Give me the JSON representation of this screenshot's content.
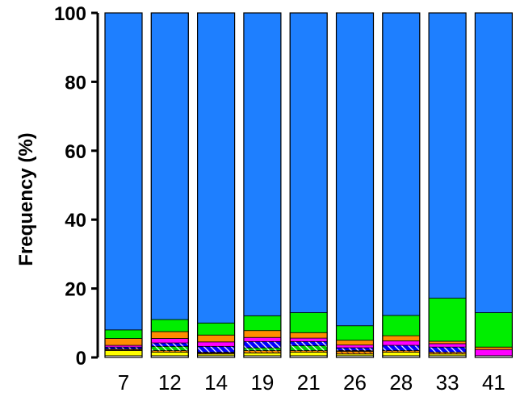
{
  "chart_data": {
    "type": "bar",
    "stacked": true,
    "ylabel": "Frequency (%)",
    "xlabel": "",
    "ylim": [
      0,
      100
    ],
    "yticks": [
      "0",
      "20",
      "40",
      "60",
      "80",
      "100"
    ],
    "categories": [
      "7",
      "12",
      "14",
      "19",
      "21",
      "26",
      "28",
      "33",
      "41"
    ],
    "grid": false,
    "legend": "none",
    "series": [
      {
        "fill": "#ffffff",
        "pattern": "none",
        "values": [
          0.5,
          0.5,
          0.5,
          0.5,
          0.5,
          0.5,
          0.5,
          0.5,
          0.5
        ]
      },
      {
        "fill": "#ffff00",
        "pattern": "none",
        "values": [
          1.5,
          1.0,
          0.5,
          0.8,
          1.0,
          0.5,
          1.0,
          0.5,
          0.0
        ]
      },
      {
        "fill": "#ff8c00",
        "pattern": "dark-hatch",
        "values": [
          0.3,
          0.5,
          0.3,
          0.7,
          0.5,
          0.8,
          0.5,
          0.5,
          0.0
        ]
      },
      {
        "fill": "#ff00ff",
        "pattern": "none",
        "values": [
          0.2,
          0.0,
          0.2,
          0.0,
          0.0,
          0.2,
          0.0,
          0.0,
          1.8
        ]
      },
      {
        "fill": "#00cc00",
        "pattern": "white-hatch",
        "values": [
          0.0,
          1.2,
          0.0,
          0.8,
          1.4,
          0.0,
          0.0,
          0.0,
          0.0
        ]
      },
      {
        "fill": "#0000ff",
        "pattern": "white-hatch",
        "values": [
          0.5,
          1.0,
          1.7,
          1.8,
          1.2,
          0.8,
          1.5,
          1.5,
          0.0
        ]
      },
      {
        "fill": "#ff00ff",
        "pattern": "none",
        "values": [
          0.5,
          1.3,
          1.3,
          1.2,
          1.0,
          0.8,
          1.3,
          1.0,
          0.0
        ]
      },
      {
        "fill": "#ff8c00",
        "pattern": "none",
        "values": [
          2.0,
          2.0,
          2.0,
          2.0,
          1.6,
          1.4,
          1.5,
          0.7,
          0.7
        ]
      },
      {
        "fill": "#00ee00",
        "pattern": "none",
        "values": [
          2.5,
          3.5,
          3.5,
          4.3,
          5.8,
          4.2,
          5.9,
          12.5,
          10.0
        ]
      },
      {
        "fill": "#1e7fff",
        "pattern": "none",
        "values": [
          92.0,
          89.0,
          90.0,
          87.9,
          87.0,
          90.8,
          87.8,
          82.8,
          87.0
        ]
      }
    ]
  }
}
